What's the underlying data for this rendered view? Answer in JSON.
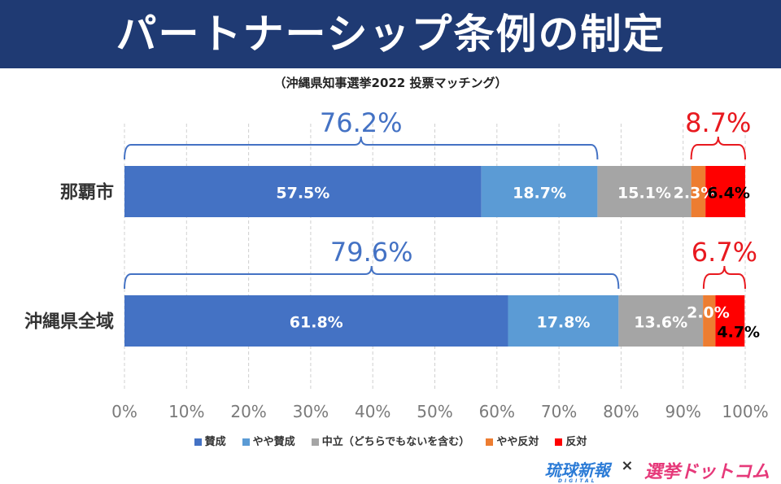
{
  "header": {
    "title": "パートナーシップ条例の制定"
  },
  "chart_data": {
    "type": "bar",
    "orientation": "horizontal",
    "stacked": true,
    "subtitle": "（沖縄県知事選挙2022 投票マッチング）",
    "categories": [
      "那覇市",
      "沖縄県全域"
    ],
    "series": [
      {
        "name": "賛成",
        "values": [
          57.5,
          61.8
        ],
        "labels": [
          "57.5%",
          "61.8%"
        ],
        "color": "#4472c4"
      },
      {
        "name": "やや賛成",
        "values": [
          18.7,
          17.8
        ],
        "labels": [
          "18.7%",
          "17.8%"
        ],
        "color": "#5b9bd5"
      },
      {
        "name": "中立（どちらでもないを含む）",
        "values": [
          15.1,
          13.6
        ],
        "labels": [
          "15.1%",
          "13.6%"
        ],
        "color": "#a5a5a5"
      },
      {
        "name": "やや反対",
        "values": [
          2.3,
          2.0
        ],
        "labels": [
          "2.3%",
          "2.0%"
        ],
        "color": "#ed7d31"
      },
      {
        "name": "反対",
        "values": [
          6.4,
          4.7
        ],
        "labels": [
          "6.4%",
          "4.7%"
        ],
        "color": "#ff0000"
      }
    ],
    "x_ticks": [
      "0%",
      "10%",
      "20%",
      "30%",
      "40%",
      "50%",
      "60%",
      "70%",
      "80%",
      "90%",
      "100%"
    ],
    "xlim": [
      0,
      100
    ],
    "grid": "vertical dashed",
    "legend_position": "bottom",
    "annotations": [
      {
        "category": "那覇市",
        "label": "76.2%",
        "from": 0,
        "to": 76.2,
        "color": "#4472c4"
      },
      {
        "category": "那覇市",
        "label": "8.7%",
        "from": 91.3,
        "to": 100,
        "color": "#e8191f"
      },
      {
        "category": "沖縄県全域",
        "label": "79.6%",
        "from": 0,
        "to": 79.6,
        "color": "#4472c4"
      },
      {
        "category": "沖縄県全域",
        "label": "6.7%",
        "from": 93.3,
        "to": 100,
        "color": "#e8191f"
      }
    ]
  },
  "footer": {
    "logo_left": "琉球新報",
    "logo_left_sub": "DIGITAL",
    "separator": "×",
    "logo_right": "選挙ドットコム"
  }
}
